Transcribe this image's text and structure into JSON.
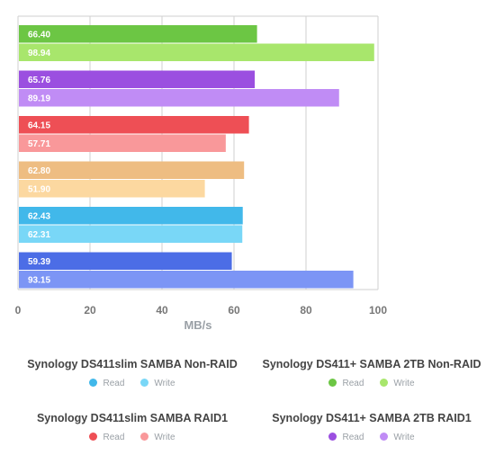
{
  "chart_data": {
    "type": "bar",
    "orientation": "horizontal",
    "xlabel": "MB/s",
    "xlim": [
      0,
      100
    ],
    "xticks": [
      0,
      20,
      40,
      60,
      80,
      100
    ],
    "series": [
      {
        "name": "Synology DS411+ SAMBA 2TB Non-RAID",
        "read": 66.4,
        "write": 98.94,
        "read_label": "66.40",
        "write_label": "98.94",
        "read_color": "#6cc644",
        "write_color": "#a8e66c"
      },
      {
        "name": "Synology DS411+ SAMBA 2TB RAID1",
        "read": 65.76,
        "write": 89.19,
        "read_label": "65.76",
        "write_label": "89.19",
        "read_color": "#9b4fe0",
        "write_color": "#c08cf5"
      },
      {
        "name": "Synology DS411slim SAMBA RAID1",
        "read": 64.15,
        "write": 57.71,
        "read_label": "64.15",
        "write_label": "57.71",
        "read_color": "#ee4f55",
        "write_color": "#f9989a"
      },
      {
        "name": "",
        "read": 62.8,
        "write": 51.9,
        "read_label": "62.80",
        "write_label": "51.90",
        "read_color": "#eebd82",
        "write_color": "#fcd8a0"
      },
      {
        "name": "Synology DS411slim SAMBA Non-RAID",
        "read": 62.43,
        "write": 62.31,
        "read_label": "62.43",
        "write_label": "62.31",
        "read_color": "#41b8ea",
        "write_color": "#79d7f7"
      },
      {
        "name": "",
        "read": 59.39,
        "write": 93.15,
        "read_label": "59.39",
        "write_label": "93.15",
        "read_color": "#4c6de6",
        "write_color": "#7c95f5"
      }
    ],
    "legend": [
      {
        "title": "Synology DS411slim SAMBA Non-RAID",
        "read_label": "Read",
        "write_label": "Write",
        "read_color": "#41b8ea",
        "write_color": "#79d7f7"
      },
      {
        "title": "Synology DS411+ SAMBA 2TB Non-RAID",
        "read_label": "Read",
        "write_label": "Write",
        "read_color": "#6cc644",
        "write_color": "#a8e66c"
      },
      {
        "title": "Synology DS411slim SAMBA RAID1",
        "read_label": "Read",
        "write_label": "Write",
        "read_color": "#ee4f55",
        "write_color": "#f9989a"
      },
      {
        "title": "Synology DS411+ SAMBA 2TB RAID1",
        "read_label": "Read",
        "write_label": "Write",
        "read_color": "#9b4fe0",
        "write_color": "#c08cf5"
      }
    ],
    "grid": true
  }
}
